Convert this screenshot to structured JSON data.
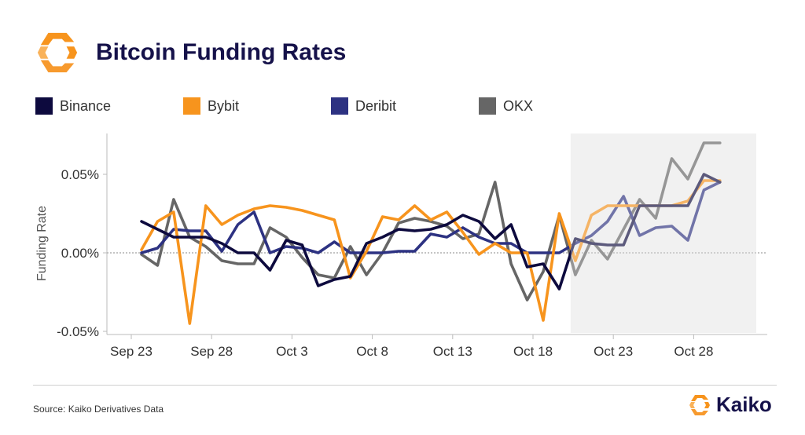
{
  "header": {
    "title": "Bitcoin Funding Rates"
  },
  "footer": {
    "source": "Source: Kaiko Derivatives Data",
    "brand": "Kaiko"
  },
  "colors": {
    "brand_orange": "#F7941D",
    "brand_navy": "#16124A",
    "highlight_bg": "#F2F2F2"
  },
  "chart_data": {
    "type": "line",
    "title": "Bitcoin Funding Rates",
    "ylabel": "Funding Rate",
    "xlabel": "",
    "x": [
      "Sep 23",
      "Sep 24",
      "Sep 25",
      "Sep 26",
      "Sep 27",
      "Sep 28",
      "Sep 29",
      "Sep 30",
      "Oct 1",
      "Oct 2",
      "Oct 3",
      "Oct 4",
      "Oct 5",
      "Oct 6",
      "Oct 7",
      "Oct 8",
      "Oct 9",
      "Oct 10",
      "Oct 11",
      "Oct 12",
      "Oct 13",
      "Oct 14",
      "Oct 15",
      "Oct 16",
      "Oct 17",
      "Oct 18",
      "Oct 19",
      "Oct 20",
      "Oct 21",
      "Oct 22",
      "Oct 23",
      "Oct 24",
      "Oct 25",
      "Oct 26",
      "Oct 27",
      "Oct 28",
      "Oct 29"
    ],
    "x_tick_labels": [
      "Sep 23",
      "Sep 28",
      "Oct 3",
      "Oct 8",
      "Oct 13",
      "Oct 18",
      "Oct 23",
      "Oct 28"
    ],
    "x_tick_indices": [
      0,
      5,
      10,
      15,
      20,
      25,
      30,
      35
    ],
    "y_ticks": [
      -0.05,
      0.0,
      0.05
    ],
    "y_tick_labels": [
      "-0.05%",
      "0.00%",
      "0.05%"
    ],
    "ylim": [
      -0.052,
      0.076
    ],
    "y_unit": "%",
    "zero_line": "dashed",
    "shaded_region": {
      "from": "Oct 20",
      "to": "Oct 31"
    },
    "legend_position": "top",
    "series": [
      {
        "name": "Binance",
        "color": "#0D0A3E",
        "values": [
          0.02,
          0.015,
          0.01,
          0.01,
          0.01,
          0.006,
          0.0,
          0.0,
          -0.011,
          0.008,
          0.005,
          -0.021,
          -0.017,
          -0.015,
          0.006,
          0.01,
          0.015,
          0.014,
          0.015,
          0.018,
          0.024,
          0.02,
          0.009,
          0.018,
          -0.009,
          -0.007,
          -0.023,
          0.009,
          0.006,
          0.005,
          0.005,
          0.03,
          0.03,
          0.03,
          0.03,
          0.05,
          0.045
        ]
      },
      {
        "name": "Bybit",
        "color": "#F7941D",
        "values": [
          0.002,
          0.02,
          0.026,
          -0.045,
          0.03,
          0.018,
          0.024,
          0.028,
          0.03,
          0.029,
          0.027,
          0.024,
          0.021,
          -0.016,
          0.001,
          0.023,
          0.021,
          0.03,
          0.021,
          0.026,
          0.013,
          -0.001,
          0.006,
          0.0,
          0.0,
          -0.043,
          0.025,
          -0.005,
          0.024,
          0.03,
          0.03,
          0.03,
          0.03,
          0.03,
          0.033,
          0.046,
          0.046
        ]
      },
      {
        "name": "Deribit",
        "color": "#2D3282",
        "values": [
          0.0,
          0.003,
          0.015,
          0.014,
          0.014,
          0.001,
          0.018,
          0.026,
          0.0,
          0.004,
          0.003,
          0.0,
          0.007,
          0.0,
          0.0,
          0.0,
          0.001,
          0.001,
          0.012,
          0.01,
          0.016,
          0.01,
          0.006,
          0.006,
          0.0,
          0.0,
          0.0,
          0.006,
          0.011,
          0.02,
          0.036,
          0.011,
          0.016,
          0.017,
          0.008,
          0.04,
          0.045
        ]
      },
      {
        "name": "OKX",
        "color": "#666666",
        "values": [
          -0.001,
          -0.008,
          0.034,
          0.01,
          0.004,
          -0.005,
          -0.007,
          -0.007,
          0.016,
          0.01,
          -0.003,
          -0.014,
          -0.016,
          0.004,
          -0.014,
          0.0,
          0.019,
          0.022,
          0.02,
          0.017,
          0.009,
          0.012,
          0.045,
          -0.007,
          -0.03,
          -0.012,
          0.024,
          -0.014,
          0.008,
          -0.004,
          0.015,
          0.034,
          0.022,
          0.06,
          0.047,
          0.07,
          0.07
        ]
      }
    ]
  }
}
